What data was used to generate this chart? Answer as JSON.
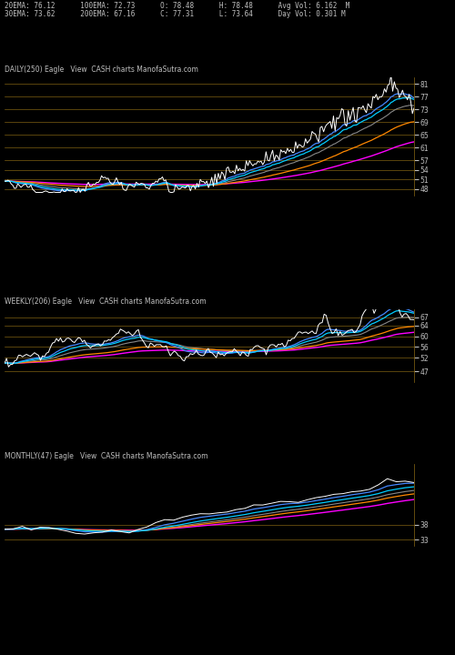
{
  "title_line1": "20EMA: 76.12      100EMA: 72.73      O: 78.48      H: 78.48      Avg Vol: 6.162  M",
  "title_line2": "30EMA: 73.62      200EMA: 67.16      C: 77.31      L: 73.64      Day Vol: 0.301 M",
  "panel_labels": [
    "DAILY(250) Eagle   View  CASH charts ManofaSutra.com",
    "WEEKLY(206) Eagle   View  CASH charts ManofaSutra.com",
    "MONTHLY(47) Eagle   View  CASH charts ManofaSutra.com"
  ],
  "background_color": "#000000",
  "grid_color": "#8B6914",
  "text_color": "#c0c0c0",
  "panel1": {
    "y_ticks": [
      81,
      77,
      73,
      69,
      65,
      61,
      57,
      54,
      51,
      48
    ],
    "y_min": 46,
    "y_max": 83,
    "n_points": 250
  },
  "panel2": {
    "y_ticks": [
      67,
      64,
      60,
      56,
      52,
      47
    ],
    "y_min": 43,
    "y_max": 70,
    "n_points": 206
  },
  "panel3": {
    "y_ticks": [
      38,
      33
    ],
    "y_min": 31,
    "y_max": 58,
    "n_points": 47
  },
  "line_colors": {
    "price": "#ffffff",
    "ema20": "#4488ff",
    "ema30": "#00ccff",
    "ema100": "#ff8800",
    "ema200": "#ff00ff",
    "gray": "#888888"
  },
  "figsize": [
    5.0,
    7.2
  ],
  "dpi": 100
}
